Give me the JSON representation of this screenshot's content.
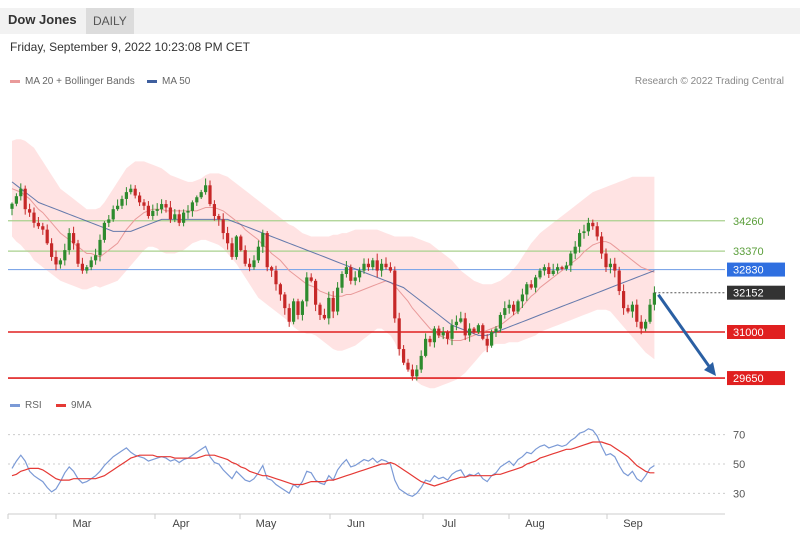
{
  "header": {
    "title": "Dow Jones",
    "timeframe": "DAILY"
  },
  "date_text": "Friday, September 9, 2022 10:23:08 PM CET",
  "credit": "Research © 2022 Trading Central",
  "colors": {
    "ma20": "#e99a9a",
    "ma50": "#3f5f9e",
    "band_fill": "#ffd9d9",
    "candle_up": "#2e8b2e",
    "candle_down": "#c62828",
    "resistance_green": "#a9d18e",
    "pivot_blue": "#7fa7e8",
    "support_red": "#e02020",
    "rsi": "#7b9ad6",
    "rsi_ma": "#e53935",
    "forecast_arrow": "#2a5fa3",
    "last_price_bg": "#333333",
    "pivot_label_bg": "#2f6fe0"
  },
  "chart_data": [
    {
      "type": "candlestick",
      "title": "Dow Jones",
      "ylim": [
        29300,
        37800
      ],
      "x_labels": [
        "Mar",
        "Apr",
        "May",
        "Jun",
        "Jul",
        "Aug",
        "Sep"
      ],
      "legend": [
        {
          "name": "MA 20 + Bollinger Bands",
          "color": "#e99a9a"
        },
        {
          "name": "MA 50",
          "color": "#3f5f9e"
        }
      ],
      "levels": [
        {
          "value": 34260,
          "label": "34260",
          "style": "resistance"
        },
        {
          "value": 33370,
          "label": "33370",
          "style": "resistance"
        },
        {
          "value": 32830,
          "label": "32830",
          "style": "pivot"
        },
        {
          "value": 31000,
          "label": "31000",
          "style": "support"
        },
        {
          "value": 29650,
          "label": "29650",
          "style": "support"
        }
      ],
      "last_price": {
        "value": 32152,
        "label": "32152"
      },
      "forecast_target": 29650,
      "close": [
        34760,
        34980,
        35200,
        34600,
        34500,
        34200,
        34100,
        34000,
        33600,
        33200,
        32980,
        33100,
        33400,
        33900,
        33600,
        33000,
        32800,
        32900,
        33100,
        33250,
        33700,
        34200,
        34300,
        34600,
        34700,
        34900,
        35100,
        35200,
        35000,
        34800,
        34700,
        34400,
        34550,
        34600,
        34750,
        34650,
        34300,
        34450,
        34200,
        34500,
        34550,
        34800,
        34950,
        35100,
        35300,
        34750,
        34400,
        34300,
        33900,
        33600,
        33200,
        33800,
        33400,
        33000,
        32900,
        33100,
        33500,
        33900,
        32900,
        32800,
        32400,
        32100,
        31700,
        31300,
        31900,
        31500,
        31900,
        32600,
        32500,
        31800,
        31500,
        31400,
        32000,
        31600,
        32300,
        32700,
        32900,
        32500,
        32600,
        32800,
        33000,
        32900,
        33100,
        32800,
        33000,
        32900,
        32800,
        31400,
        30500,
        30100,
        29900,
        29700,
        29900,
        30300,
        30800,
        30700,
        31100,
        30900,
        31000,
        30800,
        31200,
        31300,
        31400,
        30900,
        31100,
        31000,
        31200,
        30800,
        30600,
        31000,
        31100,
        31500,
        31700,
        31800,
        31600,
        31900,
        32100,
        32400,
        32300,
        32600,
        32800,
        32900,
        32700,
        32800,
        32900,
        32850,
        32950,
        33300,
        33500,
        33900,
        33950,
        34200,
        34100,
        33800,
        33300,
        32900,
        33000,
        32800,
        32200,
        31700,
        31600,
        31800,
        31300,
        31100,
        31300,
        31800,
        32152
      ],
      "ma20": [
        35200,
        35150,
        35100,
        35000,
        34900,
        34750,
        34600,
        34500,
        34350,
        34200,
        34050,
        33900,
        33800,
        33700,
        33600,
        33500,
        33400,
        33300,
        33300,
        33250,
        33200,
        33300,
        33400,
        33500,
        33600,
        33800,
        34000,
        34150,
        34300,
        34400,
        34500,
        34550,
        34600,
        34600,
        34600,
        34550,
        34550,
        34550,
        34550,
        34550,
        34550,
        34550,
        34550,
        34600,
        34650,
        34650,
        34650,
        34600,
        34550,
        34450,
        34350,
        34250,
        34150,
        34000,
        33900,
        33800,
        33700,
        33550,
        33450,
        33300,
        33200,
        33100,
        32950,
        32800,
        32700,
        32600,
        32500,
        32400,
        32350,
        32300,
        32200,
        32150,
        32100,
        32050,
        32050,
        32050,
        32100,
        32100,
        32150,
        32200,
        32250,
        32300,
        32350,
        32400,
        32450,
        32500,
        32450,
        32350,
        32200,
        32050,
        31900,
        31700,
        31550,
        31400,
        31250,
        31100,
        31000,
        30900,
        30850,
        30800,
        30750,
        30750,
        30750,
        30800,
        30850,
        30900,
        30950,
        31000,
        31050,
        31100,
        31150,
        31200,
        31300,
        31400,
        31500,
        31600,
        31750,
        31900,
        32050,
        32150,
        32300,
        32400,
        32500,
        32600,
        32700,
        32800,
        32900,
        33000,
        33100,
        33200,
        33350,
        33450,
        33550,
        33600,
        33650,
        33650,
        33600,
        33500,
        33400,
        33300,
        33200,
        33100,
        33000,
        32900,
        32850,
        32800,
        32750
      ],
      "bb_upper": [
        36600,
        36650,
        36650,
        36600,
        36500,
        36400,
        36200,
        36000,
        35800,
        35600,
        35400,
        35200,
        35100,
        35000,
        34900,
        34800,
        34700,
        34600,
        34600,
        34600,
        34650,
        34800,
        35000,
        35200,
        35400,
        35600,
        35800,
        35900,
        36000,
        36000,
        36000,
        35950,
        35900,
        35850,
        35800,
        35700,
        35600,
        35550,
        35500,
        35450,
        35400,
        35400,
        35450,
        35500,
        35600,
        35650,
        35650,
        35650,
        35600,
        35550,
        35450,
        35350,
        35250,
        35150,
        35050,
        34950,
        34850,
        34750,
        34650,
        34550,
        34450,
        34350,
        34250,
        34150,
        34100,
        34000,
        33900,
        33850,
        33800,
        33800,
        33800,
        33800,
        33800,
        33850,
        33850,
        33900,
        33900,
        33950,
        34000,
        34000,
        34000,
        34000,
        34000,
        34000,
        33950,
        33900,
        33850,
        33800,
        33800,
        33800,
        33800,
        33800,
        33750,
        33700,
        33650,
        33600,
        33500,
        33400,
        33300,
        33200,
        33100,
        32950,
        32800,
        32700,
        32600,
        32500,
        32450,
        32400,
        32400,
        32400,
        32450,
        32500,
        32600,
        32700,
        32850,
        33000,
        33200,
        33400,
        33600,
        33750,
        33900,
        34000,
        34100,
        34200,
        34300,
        34400,
        34500,
        34600,
        34700,
        34800,
        34900,
        35000,
        35100,
        35150,
        35200,
        35250,
        35300,
        35350,
        35400,
        35450,
        35500,
        35550,
        35550,
        35550,
        35550,
        35550,
        35550
      ],
      "bb_lower": [
        33800,
        33650,
        33550,
        33400,
        33300,
        33100,
        33000,
        32900,
        32800,
        32700,
        32600,
        32500,
        32450,
        32400,
        32350,
        32300,
        32250,
        32250,
        32300,
        32350,
        32300,
        32350,
        32400,
        32450,
        32500,
        32650,
        32800,
        32950,
        33100,
        33250,
        33400,
        33500,
        33500,
        33450,
        33350,
        33300,
        33300,
        33300,
        33350,
        33400,
        33500,
        33600,
        33650,
        33700,
        33700,
        33650,
        33600,
        33550,
        33450,
        33300,
        33150,
        33000,
        32800,
        32600,
        32400,
        32200,
        32000,
        31900,
        31800,
        31700,
        31600,
        31500,
        31400,
        31300,
        31150,
        31050,
        31000,
        30950,
        30950,
        30900,
        30800,
        30700,
        30600,
        30500,
        30450,
        30450,
        30500,
        30550,
        30600,
        30700,
        30800,
        30900,
        31000,
        31100,
        31100,
        31000,
        30900,
        30700,
        30400,
        30100,
        29900,
        29700,
        29550,
        29450,
        29400,
        29350,
        29350,
        29400,
        29450,
        29500,
        29550,
        29600,
        29700,
        29800,
        29950,
        30100,
        30250,
        30400,
        30500,
        30600,
        30650,
        30650,
        30650,
        30700,
        30700,
        30700,
        30750,
        30800,
        30850,
        30900,
        31000,
        31050,
        31100,
        31150,
        31200,
        31250,
        31300,
        31350,
        31400,
        31450,
        31500,
        31550,
        31600,
        31650,
        31650,
        31650,
        31600,
        31450,
        31300,
        31150,
        31000,
        30850,
        30700,
        30550,
        30400,
        30300,
        30200
      ],
      "ma50": [
        35400,
        35300,
        35200,
        35100,
        35000,
        34900,
        34800,
        34750,
        34700,
        34650,
        34600,
        34550,
        34500,
        34450,
        34400,
        34350,
        34300,
        34250,
        34200,
        34150,
        34100,
        34050,
        34000,
        33950,
        33950,
        33950,
        33950,
        33950,
        34000,
        34050,
        34100,
        34150,
        34200,
        34250,
        34300,
        34300,
        34300,
        34300,
        34300,
        34300,
        34300,
        34300,
        34300,
        34300,
        34300,
        34300,
        34300,
        34300,
        34300,
        34300,
        34250,
        34200,
        34150,
        34100,
        34050,
        34000,
        33950,
        33900,
        33850,
        33800,
        33750,
        33700,
        33650,
        33600,
        33550,
        33500,
        33450,
        33400,
        33350,
        33300,
        33250,
        33200,
        33150,
        33100,
        33050,
        33000,
        32950,
        32900,
        32850,
        32800,
        32750,
        32700,
        32650,
        32600,
        32550,
        32500,
        32450,
        32400,
        32350,
        32300,
        32200,
        32100,
        32000,
        31900,
        31800,
        31700,
        31600,
        31500,
        31400,
        31300,
        31200,
        31150,
        31100,
        31050,
        31000,
        30950,
        30900,
        30900,
        30900,
        30950,
        31000,
        31050,
        31100,
        31150,
        31200,
        31250,
        31300,
        31350,
        31400,
        31450,
        31500,
        31550,
        31600,
        31650,
        31700,
        31750,
        31800,
        31850,
        31900,
        31950,
        32000,
        32050,
        32100,
        32150,
        32200,
        32250,
        32300,
        32350,
        32400,
        32450,
        32500,
        32550,
        32600,
        32650,
        32700,
        32750,
        32800
      ]
    },
    {
      "type": "line",
      "ylim": [
        20,
        80
      ],
      "grid_values": [
        30,
        50,
        70
      ],
      "x_labels": [
        "Mar",
        "Apr",
        "May",
        "Jun",
        "Jul",
        "Aug",
        "Sep"
      ],
      "series": [
        {
          "name": "RSI",
          "color": "#7b9ad6",
          "values": [
            47,
            52,
            56,
            52,
            45,
            42,
            40,
            38,
            34,
            31,
            33,
            38,
            44,
            48,
            45,
            40,
            37,
            38,
            40,
            42,
            45,
            49,
            52,
            55,
            57,
            59,
            61,
            58,
            56,
            55,
            54,
            52,
            53,
            54,
            55,
            54,
            52,
            53,
            51,
            53,
            54,
            56,
            58,
            60,
            62,
            55,
            51,
            50,
            46,
            43,
            40,
            45,
            42,
            39,
            38,
            40,
            44,
            49,
            40,
            39,
            36,
            34,
            32,
            30,
            36,
            34,
            38,
            45,
            44,
            39,
            37,
            36,
            42,
            39,
            46,
            50,
            53,
            48,
            49,
            51,
            53,
            52,
            54,
            51,
            53,
            52,
            50,
            39,
            33,
            31,
            29,
            28,
            30,
            34,
            39,
            38,
            42,
            40,
            41,
            39,
            43,
            45,
            46,
            41,
            43,
            42,
            44,
            40,
            38,
            42,
            44,
            48,
            50,
            52,
            49,
            53,
            55,
            58,
            57,
            60,
            62,
            63,
            61,
            62,
            63,
            62,
            63,
            66,
            68,
            71,
            72,
            74,
            73,
            69,
            62,
            56,
            57,
            55,
            49,
            44,
            42,
            45,
            40,
            38,
            42,
            47,
            49
          ]
        },
        {
          "name": "9MA",
          "color": "#e53935",
          "values": [
            42,
            43,
            45,
            46,
            47,
            47,
            47,
            46,
            44,
            42,
            40,
            39,
            39,
            39,
            40,
            40,
            40,
            40,
            40,
            40,
            41,
            42,
            44,
            46,
            48,
            50,
            52,
            54,
            55,
            56,
            56,
            56,
            56,
            55,
            55,
            55,
            55,
            54,
            54,
            54,
            54,
            54,
            54,
            55,
            56,
            56,
            56,
            55,
            54,
            53,
            51,
            50,
            48,
            47,
            45,
            44,
            43,
            42,
            42,
            41,
            40,
            39,
            38,
            37,
            36,
            36,
            36,
            37,
            38,
            38,
            38,
            38,
            39,
            39,
            40,
            41,
            42,
            43,
            44,
            45,
            46,
            47,
            48,
            49,
            50,
            50,
            51,
            50,
            48,
            46,
            44,
            42,
            40,
            38,
            37,
            36,
            35,
            36,
            37,
            38,
            39,
            40,
            41,
            41,
            42,
            42,
            42,
            42,
            42,
            42,
            43,
            43,
            44,
            45,
            46,
            47,
            48,
            50,
            51,
            52,
            54,
            55,
            56,
            57,
            58,
            59,
            60,
            60,
            61,
            62,
            63,
            64,
            65,
            65,
            65,
            64,
            63,
            61,
            59,
            57,
            55,
            52,
            49,
            47,
            45,
            44,
            44
          ]
        }
      ]
    }
  ]
}
